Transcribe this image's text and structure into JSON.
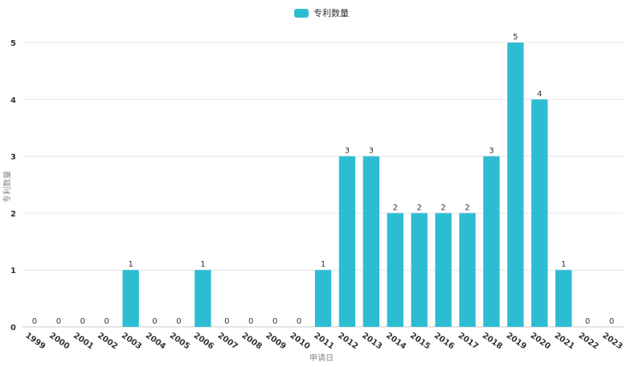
{
  "chart_data": {
    "type": "bar",
    "legend": "专利数量",
    "xlabel": "申请日",
    "ylabel": "专利数量",
    "categories": [
      "1999",
      "2000",
      "2001",
      "2002",
      "2003",
      "2004",
      "2005",
      "2006",
      "2007",
      "2008",
      "2009",
      "2010",
      "2011",
      "2012",
      "2013",
      "2014",
      "2015",
      "2016",
      "2017",
      "2018",
      "2019",
      "2020",
      "2021",
      "2022",
      "2023"
    ],
    "series": [
      {
        "name": "专利数量",
        "values": [
          0,
          0,
          0,
          0,
          1,
          0,
          0,
          1,
          0,
          0,
          0,
          0,
          1,
          3,
          3,
          2,
          2,
          2,
          2,
          3,
          5,
          4,
          1,
          0,
          0
        ]
      }
    ],
    "ylim": [
      0,
      5
    ],
    "yticks": [
      0,
      1,
      2,
      3,
      4,
      5
    ],
    "grid": true,
    "legend_position": "top-center",
    "colors": {
      "bar": "#2dbdd3",
      "grid": "#e6e6e6",
      "axis_text": "#333333",
      "label_text": "#888888"
    }
  }
}
